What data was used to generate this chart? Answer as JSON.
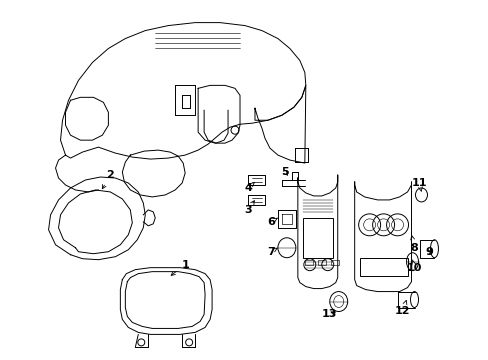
{
  "background_color": "#ffffff",
  "line_color": "#000000",
  "fig_width": 4.89,
  "fig_height": 3.6,
  "dpi": 100,
  "label_fontsize": 8
}
